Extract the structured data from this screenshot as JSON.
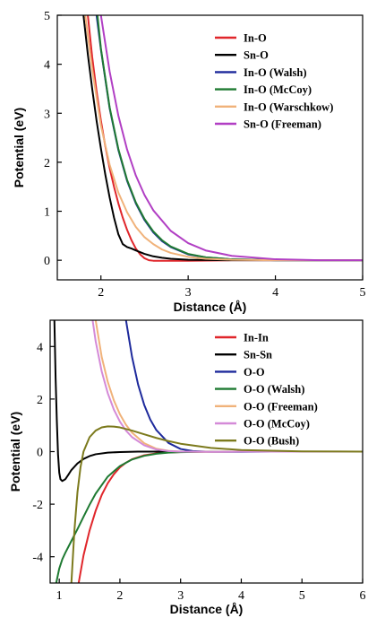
{
  "chart_data": [
    {
      "type": "line",
      "xlabel": "Distance (Å)",
      "ylabel": "Potential (eV)",
      "xlim": [
        1.5,
        5
      ],
      "ylim": [
        -0.4,
        5
      ],
      "xticks": [
        "2",
        "3",
        "4",
        "5"
      ],
      "yticks": [
        "0",
        "1",
        "2",
        "3",
        "4",
        "5"
      ],
      "legend_position": "top-right",
      "series": [
        {
          "name": "In-O",
          "color": "#e0262b",
          "x": [
            1.85,
            1.9,
            1.95,
            2.0,
            2.05,
            2.1,
            2.15,
            2.2,
            2.25,
            2.3,
            2.35,
            2.4,
            2.45,
            2.5,
            2.55,
            2.6,
            2.7,
            2.8,
            3.0,
            3.5,
            4.0,
            5.0
          ],
          "y": [
            5.0,
            4.15,
            3.45,
            2.85,
            2.33,
            1.88,
            1.5,
            1.16,
            0.87,
            0.62,
            0.41,
            0.24,
            0.12,
            0.04,
            0.0,
            -0.01,
            -0.01,
            -0.01,
            -0.01,
            0.0,
            0.0,
            0.0
          ]
        },
        {
          "name": "Sn-O",
          "color": "#000000",
          "x": [
            1.8,
            1.85,
            1.9,
            1.95,
            2.0,
            2.05,
            2.1,
            2.15,
            2.2,
            2.25,
            2.3,
            2.35,
            2.4,
            2.5,
            2.6,
            2.7,
            2.8,
            3.0,
            3.5,
            4.0,
            5.0
          ],
          "y": [
            5.0,
            4.2,
            3.5,
            2.85,
            2.28,
            1.75,
            1.28,
            0.87,
            0.53,
            0.33,
            0.27,
            0.24,
            0.2,
            0.13,
            0.08,
            0.05,
            0.03,
            0.01,
            0.0,
            0.0,
            0.0
          ]
        },
        {
          "name": "In-O (Walsh)",
          "color": "#1e2a9c",
          "x": [
            1.95,
            2.0,
            2.1,
            2.2,
            2.3,
            2.4,
            2.5,
            2.6,
            2.7,
            2.8,
            3.0,
            3.2,
            3.5,
            4.0,
            4.5,
            5.0
          ],
          "y": [
            5.0,
            4.3,
            3.1,
            2.25,
            1.62,
            1.16,
            0.82,
            0.57,
            0.39,
            0.27,
            0.12,
            0.06,
            0.02,
            0.0,
            0.0,
            0.0
          ]
        },
        {
          "name": "In-O (McCoy)",
          "color": "#1f7a32",
          "x": [
            1.96,
            2.0,
            2.1,
            2.2,
            2.3,
            2.4,
            2.5,
            2.6,
            2.7,
            2.8,
            3.0,
            3.2,
            3.5,
            4.0,
            4.5,
            5.0
          ],
          "y": [
            5.0,
            4.32,
            3.12,
            2.27,
            1.64,
            1.18,
            0.84,
            0.59,
            0.41,
            0.28,
            0.13,
            0.06,
            0.02,
            0.0,
            0.0,
            0.0
          ]
        },
        {
          "name": "In-O (Warschkow)",
          "color": "#f0b27a",
          "x": [
            1.82,
            1.9,
            2.0,
            2.1,
            2.2,
            2.3,
            2.4,
            2.5,
            2.6,
            2.7,
            2.8,
            3.0,
            3.2,
            3.5,
            4.0,
            5.0
          ],
          "y": [
            5.0,
            3.9,
            2.75,
            1.95,
            1.38,
            0.98,
            0.68,
            0.47,
            0.33,
            0.22,
            0.15,
            0.07,
            0.03,
            0.01,
            0.0,
            0.0
          ]
        },
        {
          "name": "Sn-O (Freeman)",
          "color": "#b13fc4",
          "x": [
            2.0,
            2.1,
            2.2,
            2.3,
            2.4,
            2.5,
            2.6,
            2.8,
            3.0,
            3.2,
            3.5,
            4.0,
            4.5,
            5.0
          ],
          "y": [
            5.0,
            3.85,
            2.95,
            2.26,
            1.73,
            1.33,
            1.02,
            0.6,
            0.35,
            0.2,
            0.09,
            0.02,
            0.0,
            0.0
          ]
        }
      ]
    },
    {
      "type": "line",
      "xlabel": "Distance (Å)",
      "ylabel": "Potential (eV)",
      "xlim": [
        0.85,
        6
      ],
      "ylim": [
        -5,
        5
      ],
      "xticks": [
        "1",
        "2",
        "3",
        "4",
        "5",
        "6"
      ],
      "yticks": [
        "-4",
        "-2",
        "0",
        "2",
        "4"
      ],
      "legend_position": "top-right",
      "series": [
        {
          "name": "In-In",
          "color": "#e0262b",
          "x": [
            1.32,
            1.4,
            1.5,
            1.6,
            1.7,
            1.8,
            1.9,
            2.0,
            2.1,
            2.2,
            2.4,
            2.6,
            2.8,
            3.0,
            3.5,
            4.0,
            6.0
          ],
          "y": [
            -5.0,
            -3.95,
            -3.0,
            -2.25,
            -1.65,
            -1.2,
            -0.86,
            -0.6,
            -0.42,
            -0.29,
            -0.14,
            -0.07,
            -0.03,
            -0.015,
            0.0,
            0.0,
            0.0
          ]
        },
        {
          "name": "Sn-Sn",
          "color": "#000000",
          "x": [
            0.92,
            0.94,
            0.96,
            0.98,
            1.0,
            1.02,
            1.05,
            1.1,
            1.15,
            1.2,
            1.3,
            1.4,
            1.5,
            1.6,
            1.8,
            2.0,
            2.3,
            2.6,
            3.0,
            4.0,
            6.0
          ],
          "y": [
            5.0,
            2.8,
            1.2,
            -0.1,
            -0.8,
            -1.05,
            -1.12,
            -1.05,
            -0.88,
            -0.7,
            -0.45,
            -0.28,
            -0.17,
            -0.1,
            -0.04,
            -0.015,
            0.0,
            0.0,
            0.0,
            0.0,
            0.0
          ]
        },
        {
          "name": "O-O",
          "color": "#1e2a9c",
          "x": [
            2.1,
            2.2,
            2.3,
            2.4,
            2.5,
            2.6,
            2.8,
            3.0,
            3.2,
            3.5,
            4.0,
            4.5,
            5.0,
            6.0
          ],
          "y": [
            5.0,
            3.6,
            2.55,
            1.78,
            1.22,
            0.82,
            0.33,
            0.1,
            0.02,
            -0.01,
            -0.01,
            0.0,
            0.0,
            0.0
          ]
        },
        {
          "name": "O-O (Walsh)",
          "color": "#1f7a32",
          "x": [
            0.95,
            1.0,
            1.05,
            1.1,
            1.2,
            1.3,
            1.4,
            1.5,
            1.6,
            1.8,
            2.0,
            2.2,
            2.4,
            2.6,
            2.8,
            3.0,
            3.5,
            4.0,
            6.0
          ],
          "y": [
            -5.0,
            -4.45,
            -4.1,
            -3.85,
            -3.4,
            -2.95,
            -2.48,
            -2.02,
            -1.6,
            -0.95,
            -0.55,
            -0.3,
            -0.16,
            -0.08,
            -0.04,
            -0.02,
            0.0,
            0.0,
            0.0
          ]
        },
        {
          "name": "O-O (Freeman)",
          "color": "#f0b27a",
          "x": [
            1.6,
            1.7,
            1.8,
            1.9,
            2.0,
            2.1,
            2.2,
            2.4,
            2.6,
            2.8,
            3.0,
            3.5,
            4.0,
            5.0,
            6.0
          ],
          "y": [
            5.0,
            3.6,
            2.65,
            1.95,
            1.42,
            1.02,
            0.72,
            0.32,
            0.11,
            0.03,
            0.0,
            -0.01,
            0.0,
            0.0,
            0.0
          ]
        },
        {
          "name": "O-O (McCoy)",
          "color": "#d48ad8",
          "x": [
            1.55,
            1.6,
            1.7,
            1.8,
            1.9,
            2.0,
            2.1,
            2.2,
            2.4,
            2.6,
            2.8,
            3.0,
            3.5,
            4.0,
            5.0,
            6.0
          ],
          "y": [
            5.0,
            4.2,
            3.05,
            2.22,
            1.6,
            1.14,
            0.8,
            0.55,
            0.24,
            0.08,
            0.02,
            0.0,
            -0.01,
            0.0,
            0.0,
            0.0
          ]
        },
        {
          "name": "O-O (Bush)",
          "color": "#7c7a1d",
          "x": [
            1.2,
            1.25,
            1.3,
            1.35,
            1.4,
            1.5,
            1.6,
            1.7,
            1.8,
            1.9,
            2.0,
            2.2,
            2.4,
            2.6,
            2.8,
            3.0,
            3.5,
            4.0,
            5.0,
            6.0
          ],
          "y": [
            -5.0,
            -3.0,
            -1.55,
            -0.6,
            0.0,
            0.55,
            0.8,
            0.92,
            0.96,
            0.95,
            0.92,
            0.8,
            0.66,
            0.52,
            0.4,
            0.3,
            0.14,
            0.06,
            0.01,
            0.0
          ]
        }
      ]
    }
  ]
}
